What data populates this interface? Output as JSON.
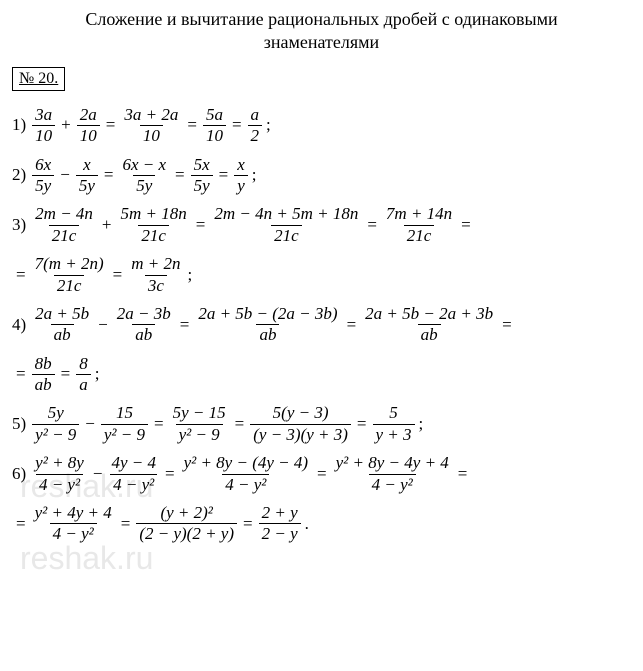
{
  "title_line1": "Сложение и вычитание рациональных дробей с одинаковыми",
  "title_line2": "знаменателями",
  "problem_number": "№ 20.",
  "watermark": "reshak.ru",
  "items": {
    "1": {
      "label": "1)",
      "f1": {
        "t": "3a",
        "b": "10"
      },
      "op1": "+",
      "f2": {
        "t": "2a",
        "b": "10"
      },
      "f3": {
        "t": "3a + 2a",
        "b": "10"
      },
      "f4": {
        "t": "5a",
        "b": "10"
      },
      "f5": {
        "t": "a",
        "b": "2"
      }
    },
    "2": {
      "label": "2)",
      "f1": {
        "t": "6x",
        "b": "5y"
      },
      "op1": "−",
      "f2": {
        "t": "x",
        "b": "5y"
      },
      "f3": {
        "t": "6x − x",
        "b": "5y"
      },
      "f4": {
        "t": "5x",
        "b": "5y"
      },
      "f5": {
        "t": "x",
        "b": "y"
      }
    },
    "3": {
      "label": "3)",
      "f1": {
        "t": "2m − 4n",
        "b": "21c"
      },
      "op1": "+",
      "f2": {
        "t": "5m + 18n",
        "b": "21c"
      },
      "f3": {
        "t": "2m − 4n + 5m + 18n",
        "b": "21c"
      },
      "f4": {
        "t": "7m + 14n",
        "b": "21c"
      },
      "f5": {
        "t": "7(m + 2n)",
        "b": "21c"
      },
      "f6": {
        "t": "m + 2n",
        "b": "3c"
      }
    },
    "4": {
      "label": "4)",
      "f1": {
        "t": "2a + 5b",
        "b": "ab"
      },
      "op1": "−",
      "f2": {
        "t": "2a − 3b",
        "b": "ab"
      },
      "f3": {
        "t": "2a + 5b − (2a − 3b)",
        "b": "ab"
      },
      "f4": {
        "t": "2a + 5b − 2a + 3b",
        "b": "ab"
      },
      "f5": {
        "t": "8b",
        "b": "ab"
      },
      "f6": {
        "t": "8",
        "b": "a"
      }
    },
    "5": {
      "label": "5)",
      "f1": {
        "t": "5y",
        "b": "y² − 9"
      },
      "op1": "−",
      "f2": {
        "t": "15",
        "b": "y² − 9"
      },
      "f3": {
        "t": "5y − 15",
        "b": "y² − 9"
      },
      "f4": {
        "t": "5(y − 3)",
        "b": "(y − 3)(y + 3)"
      },
      "f5": {
        "t": "5",
        "b": "y + 3"
      }
    },
    "6": {
      "label": "6)",
      "f1": {
        "t": "y² + 8y",
        "b": "4 − y²"
      },
      "op1": "−",
      "f2": {
        "t": "4y − 4",
        "b": "4 − y²"
      },
      "f3": {
        "t": "y² + 8y − (4y − 4)",
        "b": "4 − y²"
      },
      "f4": {
        "t": "y² + 8y − 4y + 4",
        "b": "4 − y²"
      },
      "f5": {
        "t": "y² + 4y + 4",
        "b": "4 − y²"
      },
      "f6": {
        "t": "(y + 2)²",
        "b": "(2 − y)(2 + y)"
      },
      "f7": {
        "t": "2 + y",
        "b": "2 − y"
      }
    }
  }
}
